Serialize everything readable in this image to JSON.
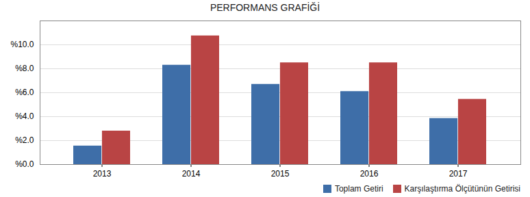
{
  "chart_data": {
    "type": "bar",
    "title": "PERFORMANS GRAFİĞİ",
    "categories": [
      "2013",
      "2014",
      "2015",
      "2016",
      "2017"
    ],
    "series": [
      {
        "name": "Toplam Getiri",
        "color": "#3e6ea8",
        "values": [
          1.55,
          8.3,
          6.7,
          6.1,
          3.85
        ]
      },
      {
        "name": "Karşılaştırma Ölçütünün Getirisi",
        "color": "#b94444",
        "values": [
          2.8,
          10.75,
          8.5,
          8.5,
          5.45
        ]
      }
    ],
    "ylim": [
      0,
      12
    ],
    "yticks": [
      {
        "value": 0,
        "label": "%0.0"
      },
      {
        "value": 2,
        "label": "%2.0"
      },
      {
        "value": 4,
        "label": "%4.0"
      },
      {
        "value": 6,
        "label": "%6.0"
      },
      {
        "value": 8,
        "label": "%8.0"
      },
      {
        "value": 10,
        "label": "%10.0"
      }
    ],
    "grid": true,
    "legend": "bottom-right"
  }
}
